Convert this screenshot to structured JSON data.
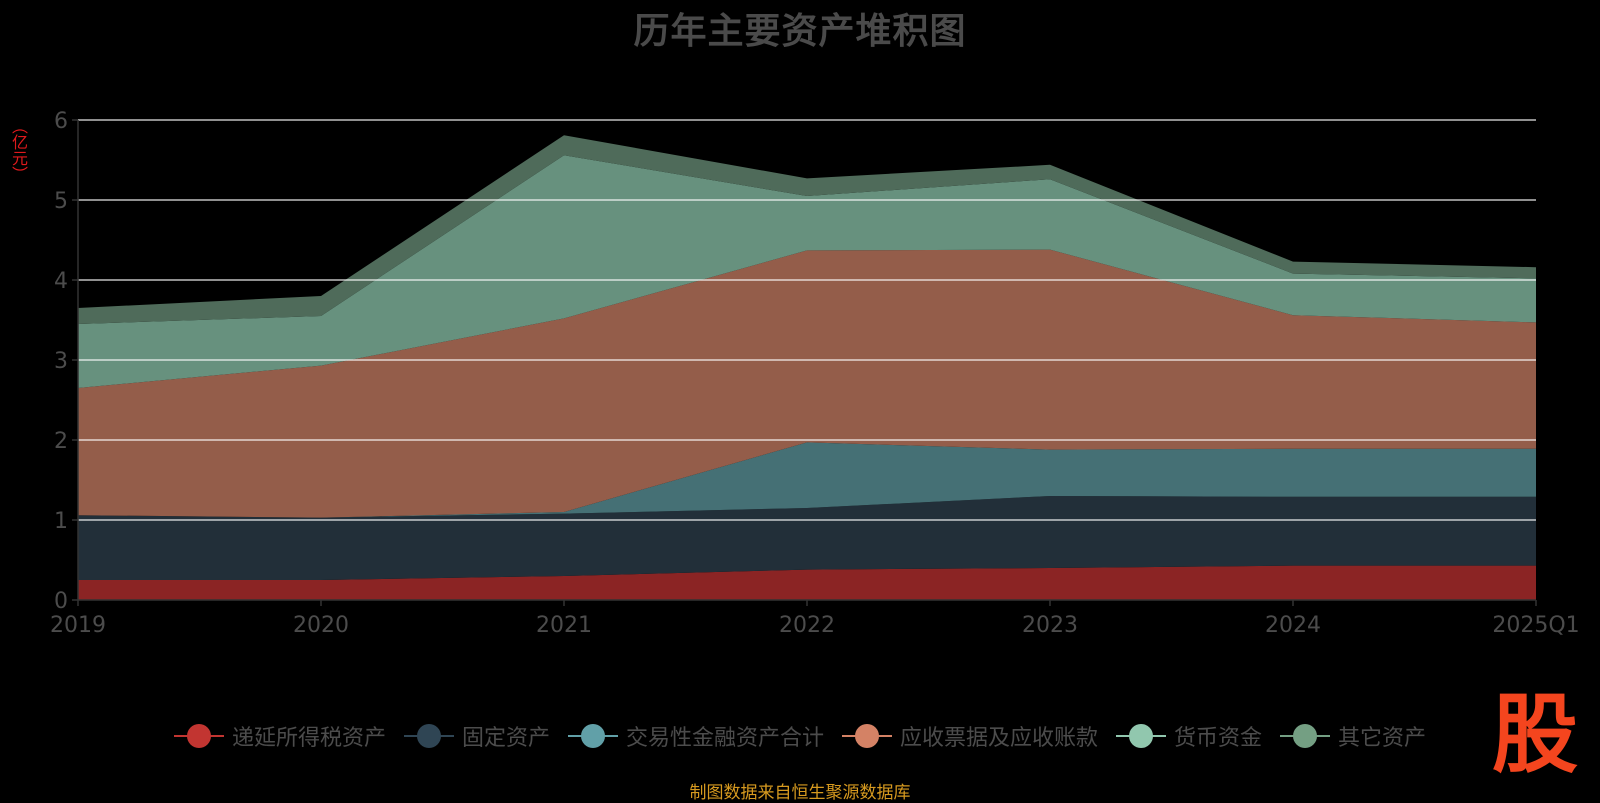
{
  "chart_data": {
    "type": "area",
    "stacked": true,
    "title": "历年主要资产堆积图",
    "unit_label": "（亿元）",
    "categories": [
      "2019",
      "2020",
      "2021",
      "2022",
      "2023",
      "2024",
      "2025Q1"
    ],
    "ylim": [
      0,
      6
    ],
    "yticks": [
      0,
      1,
      2,
      3,
      4,
      5,
      6
    ],
    "grid": true,
    "legend_position": "bottom",
    "series": [
      {
        "name": "递延所得税资产",
        "color": "#8b2424",
        "legend_color": "#c23531",
        "values": [
          0.25,
          0.25,
          0.3,
          0.38,
          0.4,
          0.43,
          0.43
        ]
      },
      {
        "name": "固定资产",
        "color": "#222f39",
        "legend_color": "#2f4554",
        "values": [
          0.81,
          0.78,
          0.78,
          0.77,
          0.9,
          0.86,
          0.86
        ]
      },
      {
        "name": "交易性金融资产合计",
        "color": "#457075",
        "legend_color": "#61a0a8",
        "values": [
          0.0,
          0.0,
          0.02,
          0.82,
          0.58,
          0.6,
          0.6
        ]
      },
      {
        "name": "应收票据及应收账款",
        "color": "#945d4a",
        "legend_color": "#d48265",
        "values": [
          1.59,
          1.9,
          2.42,
          2.4,
          2.5,
          1.67,
          1.58
        ]
      },
      {
        "name": "货币资金",
        "color": "#67917e",
        "legend_color": "#91c7ae",
        "values": [
          0.8,
          0.62,
          2.04,
          0.68,
          0.88,
          0.52,
          0.55
        ]
      },
      {
        "name": "其它资产",
        "color": "#4f6b5a",
        "legend_color": "#749f83",
        "values": [
          0.2,
          0.25,
          0.25,
          0.22,
          0.18,
          0.15,
          0.14
        ]
      }
    ]
  },
  "source_text": "制图数据来自恒生聚源数据库",
  "logo_text": "股"
}
